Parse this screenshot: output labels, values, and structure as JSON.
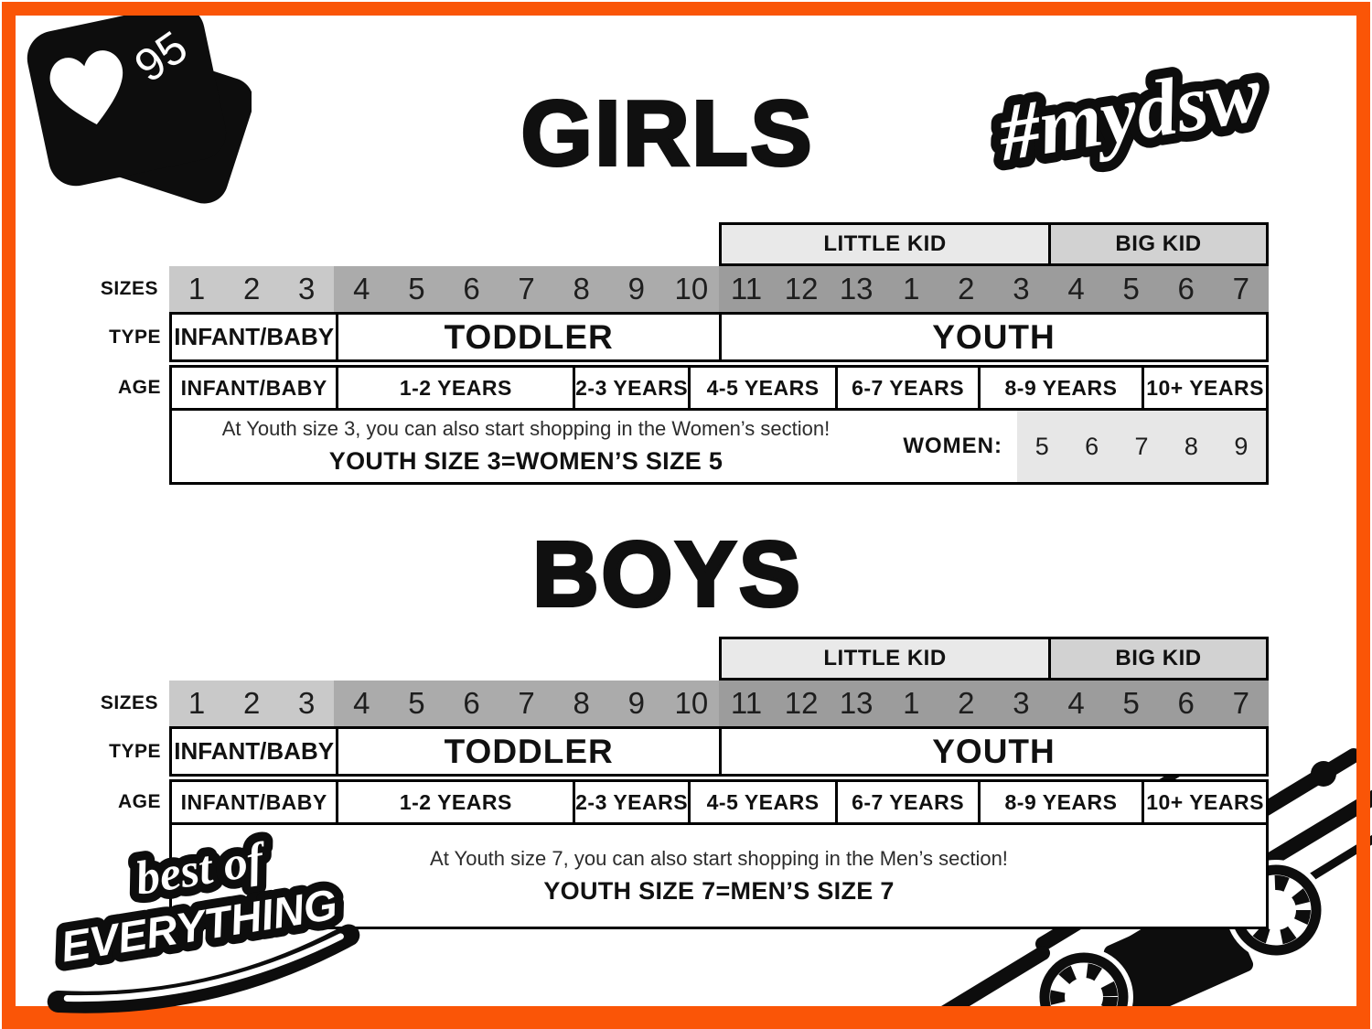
{
  "colors": {
    "accent": "#fa5507",
    "infant_bg": "#c9c9c9",
    "toddler_bg": "#ababab",
    "youth_bg": "#9c9c9c",
    "little_kid_bg": "#e9e9e9",
    "big_kid_bg": "#d2d2d2",
    "women_bg": "#e7e7e7",
    "ink": "#111111"
  },
  "badge": {
    "count": "95"
  },
  "hashtag": {
    "text": "#mydsw"
  },
  "sticker": {
    "line1": "best of",
    "line2": "EVERYTHING"
  },
  "table_labels": {
    "sizes": "SIZES",
    "type": "TYPE",
    "age": "AGE",
    "little_kid": "LITTLE KID",
    "big_kid": "BIG KID"
  },
  "girls": {
    "title": "GIRLS",
    "sizes": [
      "1",
      "2",
      "3",
      "4",
      "5",
      "6",
      "7",
      "8",
      "9",
      "10",
      "11",
      "12",
      "13",
      "1",
      "2",
      "3",
      "4",
      "5",
      "6",
      "7"
    ],
    "types": [
      {
        "label": "INFANT/BABY",
        "span": 3
      },
      {
        "label": "TODDLER",
        "span": 7
      },
      {
        "label": "YOUTH",
        "span": 10
      }
    ],
    "ages": [
      {
        "label": "INFANT/BABY",
        "span": 3
      },
      {
        "label": "1-2 YEARS",
        "span": 4.33
      },
      {
        "label": "2-3 YEARS",
        "span": 2.1
      },
      {
        "label": "4-5 YEARS",
        "span": 2.7
      },
      {
        "label": "6-7 YEARS",
        "span": 2.6
      },
      {
        "label": "8-9 YEARS",
        "span": 3
      },
      {
        "label": "10+ YEARS",
        "span": 2.27
      }
    ],
    "note_line1": "At Youth size 3, you can also start shopping in the Women’s section!",
    "note_line2": "YOUTH SIZE 3=WOMEN’S SIZE 5",
    "women_label": "WOMEN:",
    "women_sizes": [
      "5",
      "6",
      "7",
      "8",
      "9"
    ]
  },
  "boys": {
    "title": "BOYS",
    "sizes": [
      "1",
      "2",
      "3",
      "4",
      "5",
      "6",
      "7",
      "8",
      "9",
      "10",
      "11",
      "12",
      "13",
      "1",
      "2",
      "3",
      "4",
      "5",
      "6",
      "7"
    ],
    "types": [
      {
        "label": "INFANT/BABY",
        "span": 3
      },
      {
        "label": "TODDLER",
        "span": 7
      },
      {
        "label": "YOUTH",
        "span": 10
      }
    ],
    "ages": [
      {
        "label": "INFANT/BABY",
        "span": 3
      },
      {
        "label": "1-2 YEARS",
        "span": 4.33
      },
      {
        "label": "2-3 YEARS",
        "span": 2.1
      },
      {
        "label": "4-5 YEARS",
        "span": 2.7
      },
      {
        "label": "6-7 YEARS",
        "span": 2.6
      },
      {
        "label": "8-9 YEARS",
        "span": 3
      },
      {
        "label": "10+ YEARS",
        "span": 2.27
      }
    ],
    "note_line1": "At Youth size 7, you can also start shopping in the Men’s section!",
    "note_line2": "YOUTH SIZE 7=MEN’S SIZE 7"
  }
}
